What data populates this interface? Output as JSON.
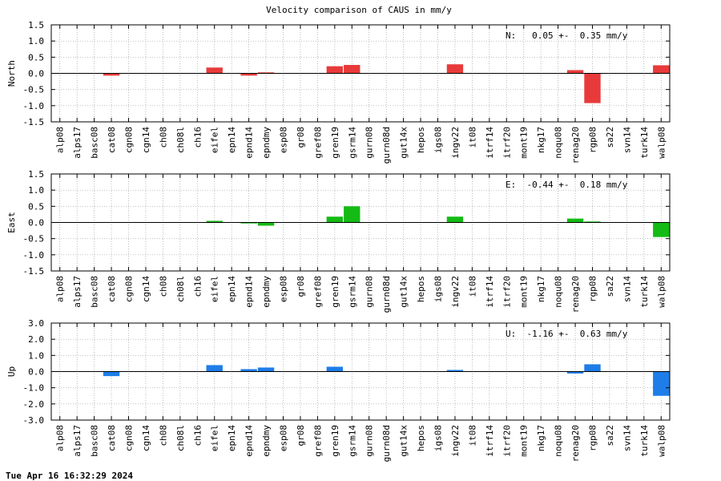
{
  "title": "Velocity comparison of CAUS in mm/y",
  "timestamp": "Tue Apr 16 16:32:29 2024",
  "colors": {
    "north": "#e83a3a",
    "east": "#14bb14",
    "up": "#1e7de8"
  },
  "chart_data": [
    {
      "type": "bar",
      "ylabel": "North",
      "ylim": [
        -1.5,
        1.5
      ],
      "yticks": [
        "1.5",
        "1.0",
        "0.5",
        "0.0",
        "-0.5",
        "-1.0",
        "-1.5"
      ],
      "annotation": "N:   0.05 +-  0.35 mm/y",
      "grid": true,
      "categories": [
        "alp08",
        "alps17",
        "basc08",
        "cat08",
        "cgn08",
        "cgn14",
        "ch08",
        "ch08l",
        "ch16",
        "eifel",
        "epn14",
        "epnd14",
        "epndmy",
        "esp08",
        "gr08",
        "gref08",
        "gren19",
        "gsrm14",
        "gurn08",
        "gurn08d",
        "gut14x",
        "hepos",
        "igs08",
        "ingv22",
        "it08",
        "itrf14",
        "itrf20",
        "mont19",
        "nkg17",
        "noqu08",
        "renag20",
        "rgp08",
        "sa22",
        "svn14",
        "turk14",
        "walp08"
      ],
      "values": [
        0,
        0,
        0,
        -0.07,
        0,
        0,
        0,
        0,
        0,
        0.18,
        0,
        -0.07,
        0.03,
        0,
        0,
        0,
        0.22,
        0.26,
        0,
        0,
        0,
        0,
        0,
        0.28,
        0,
        0,
        0,
        0,
        0,
        0,
        0.1,
        -0.92,
        0,
        0,
        0,
        0.25
      ]
    },
    {
      "type": "bar",
      "ylabel": "East",
      "ylim": [
        -1.5,
        1.5
      ],
      "yticks": [
        "1.5",
        "1.0",
        "0.5",
        "0.0",
        "-0.5",
        "-1.0",
        "-1.5"
      ],
      "annotation": "E:  -0.44 +-  0.18 mm/y",
      "grid": true,
      "categories": [
        "alp08",
        "alps17",
        "basc08",
        "cat08",
        "cgn08",
        "cgn14",
        "ch08",
        "ch08l",
        "ch16",
        "eifel",
        "epn14",
        "epnd14",
        "epndmy",
        "esp08",
        "gr08",
        "gref08",
        "gren19",
        "gsrm14",
        "gurn08",
        "gurn08d",
        "gut14x",
        "hepos",
        "igs08",
        "ingv22",
        "it08",
        "itrf14",
        "itrf20",
        "mont19",
        "nkg17",
        "noqu08",
        "renag20",
        "rgp08",
        "sa22",
        "svn14",
        "turk14",
        "walp08"
      ],
      "values": [
        0,
        0,
        0,
        0,
        0,
        0,
        0,
        0,
        0,
        0.05,
        0,
        -0.03,
        -0.1,
        0,
        0,
        0,
        0.18,
        0.5,
        0,
        0,
        0,
        0,
        0,
        0.18,
        0,
        0,
        0,
        0,
        0,
        0,
        0.12,
        0.03,
        0,
        0,
        0,
        -0.45
      ]
    },
    {
      "type": "bar",
      "ylabel": "Up",
      "ylim": [
        -3.0,
        3.0
      ],
      "yticks": [
        "3.0",
        "2.0",
        "1.0",
        "0.0",
        "-1.0",
        "-2.0",
        "-3.0"
      ],
      "annotation": "U:  -1.16 +-  0.63 mm/y",
      "grid": true,
      "categories": [
        "alp08",
        "alps17",
        "basc08",
        "cat08",
        "cgn08",
        "cgn14",
        "ch08",
        "ch08l",
        "ch16",
        "eifel",
        "epn14",
        "epnd14",
        "epndmy",
        "esp08",
        "gr08",
        "gref08",
        "gren19",
        "gsrm14",
        "gurn08",
        "gurn08d",
        "gut14x",
        "hepos",
        "igs08",
        "ingv22",
        "it08",
        "itrf14",
        "itrf20",
        "mont19",
        "nkg17",
        "noqu08",
        "renag20",
        "rgp08",
        "sa22",
        "svn14",
        "turk14",
        "walp08"
      ],
      "values": [
        0,
        0,
        0,
        -0.28,
        0,
        0,
        0,
        0,
        0,
        0.4,
        0,
        0.15,
        0.25,
        0,
        0,
        0,
        0.3,
        0,
        0,
        0,
        0,
        0,
        0,
        0.1,
        0,
        0,
        0,
        0,
        0,
        0,
        -0.12,
        0.45,
        0,
        0,
        0,
        -1.5
      ]
    }
  ]
}
